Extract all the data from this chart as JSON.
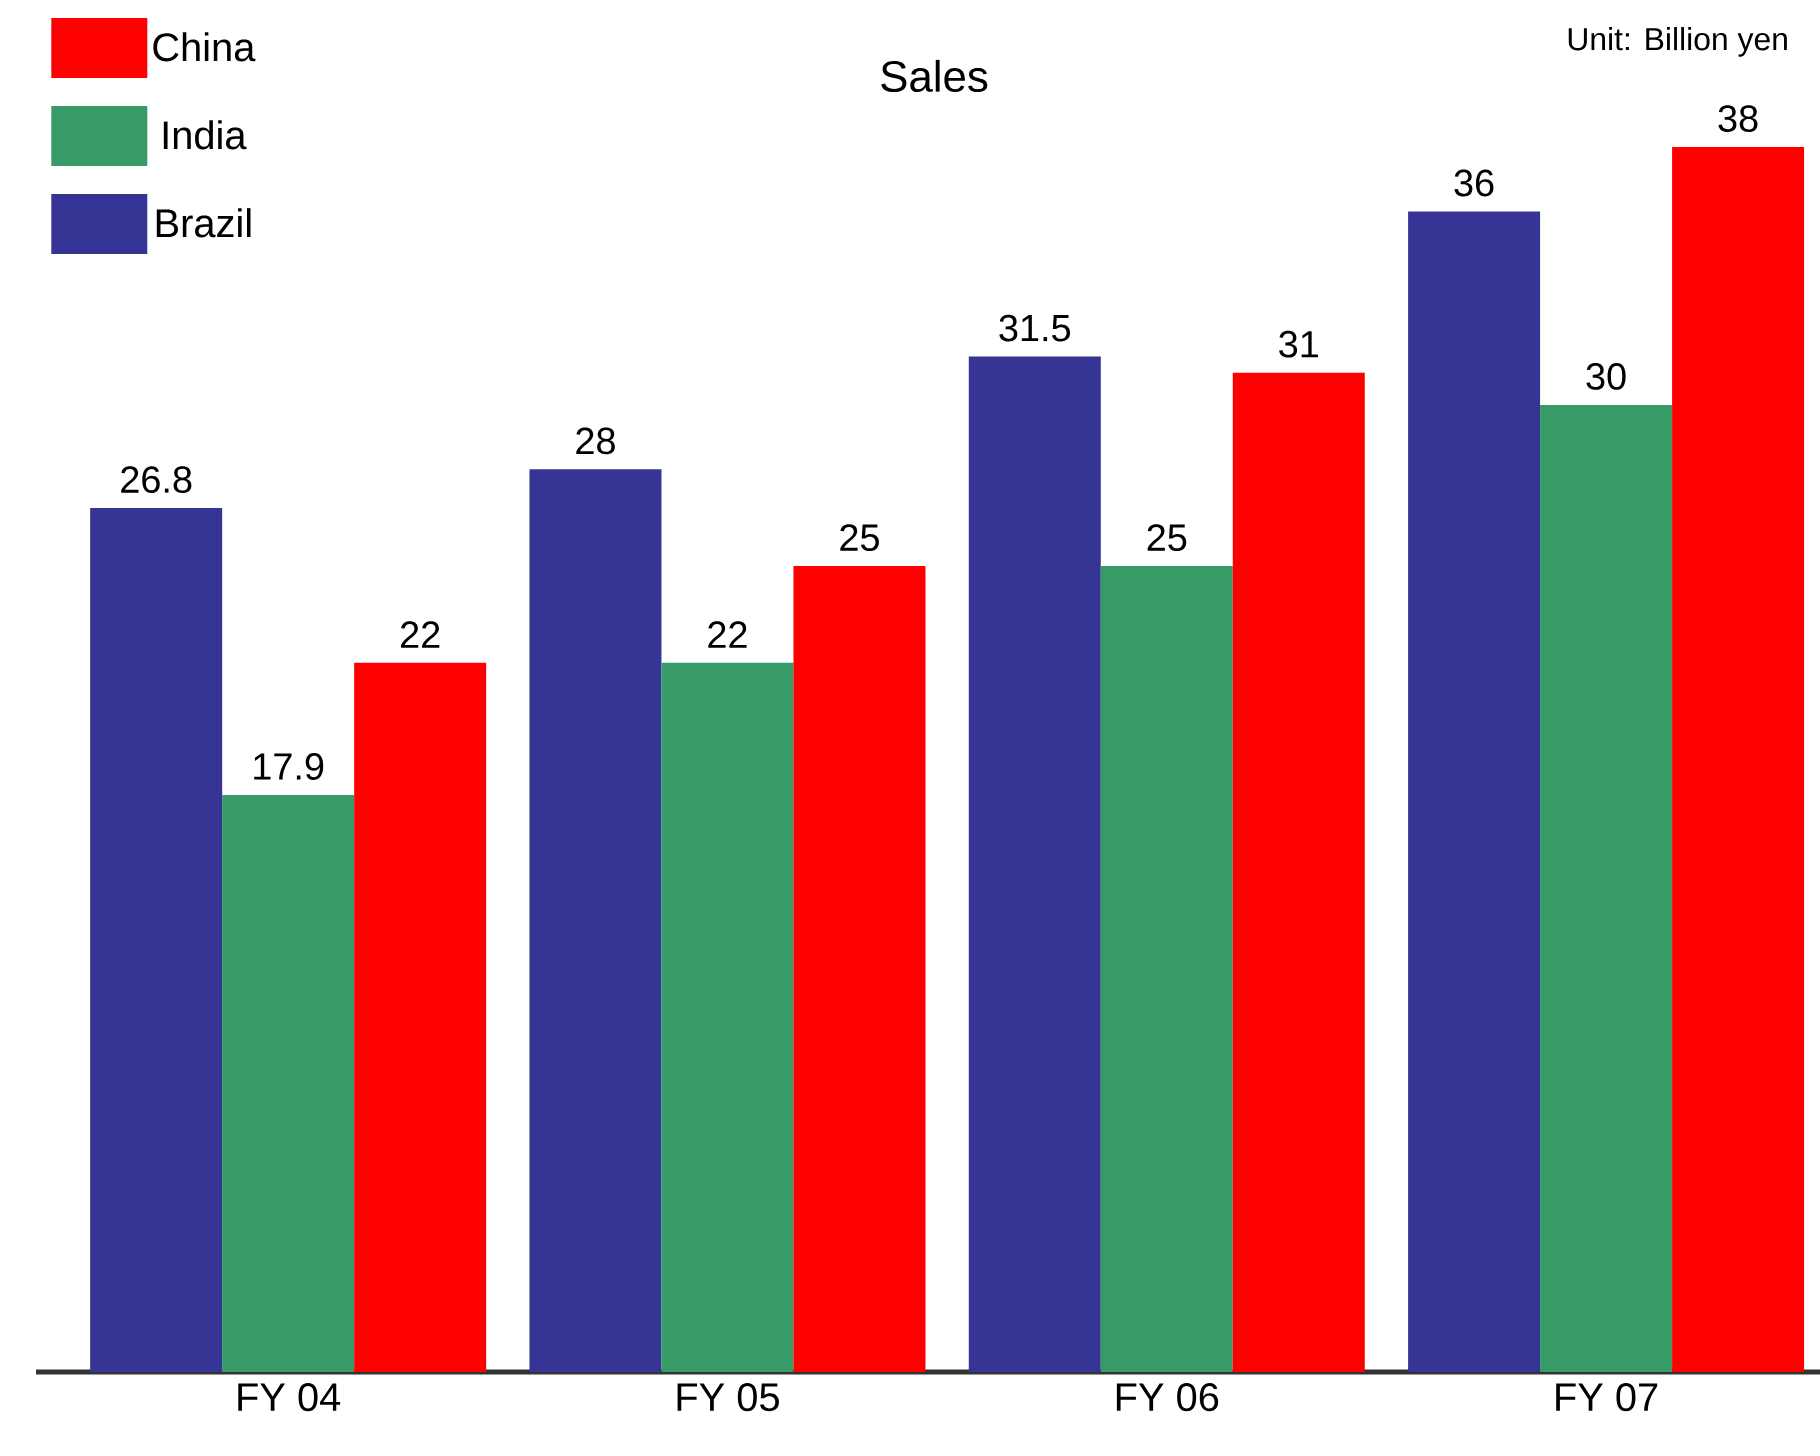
{
  "chart_data": {
    "type": "bar",
    "title": "Sales",
    "annotations": [
      "Unit: Billion yen"
    ],
    "categories": [
      "FY 04",
      "FY 05",
      "FY 06",
      "FY 07"
    ],
    "series": [
      {
        "name": "Brazil",
        "color": "#363596",
        "values": [
          26.8,
          28,
          31.5,
          36
        ]
      },
      {
        "name": "India",
        "color": "#379b68",
        "values": [
          17.9,
          22,
          25,
          30
        ]
      },
      {
        "name": "China",
        "color": "#ff0000",
        "values": [
          22,
          25,
          31,
          38
        ]
      }
    ],
    "data_labels": true,
    "legend": "top left",
    "grid": false
  }
}
